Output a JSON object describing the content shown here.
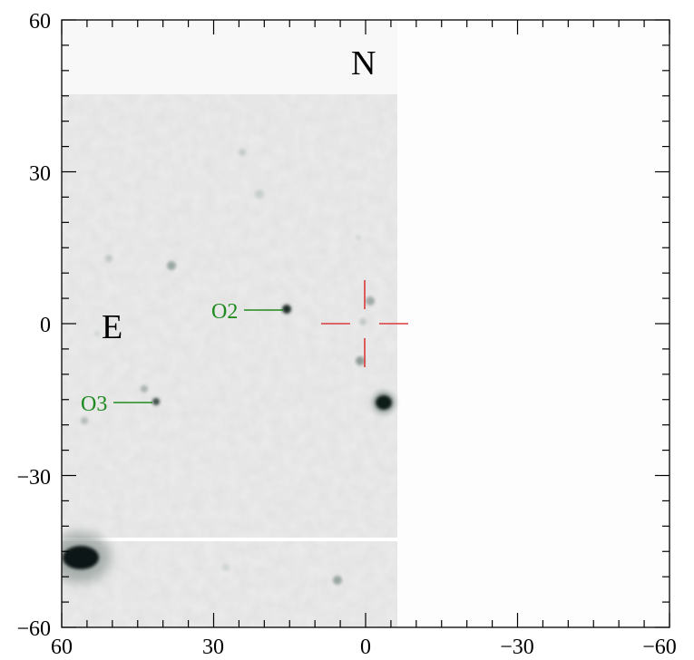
{
  "figure": {
    "direction_labels": {
      "north": "N",
      "east": "E"
    },
    "axes": {
      "x_range": [
        60,
        -60
      ],
      "y_range": [
        -60,
        60
      ],
      "x_tick_labels": [
        "60",
        "30",
        "0",
        "−30",
        "−60"
      ],
      "y_tick_labels": [
        "60",
        "30",
        "0",
        "−30",
        "−60"
      ]
    },
    "objects": [
      {
        "label": "O2",
        "x": 15.5,
        "y": 3.0
      },
      {
        "label": "O3",
        "x": 40.5,
        "y": -15.0
      }
    ],
    "target_marker": {
      "x": 0,
      "y": 0
    },
    "colors": {
      "image_background": "#ececec",
      "empty_region": "#fdfdfd",
      "source": "#0d1a18",
      "object_label": "#1f8a1f",
      "crosshair": "#d93a3a",
      "axis": "#000000"
    }
  }
}
